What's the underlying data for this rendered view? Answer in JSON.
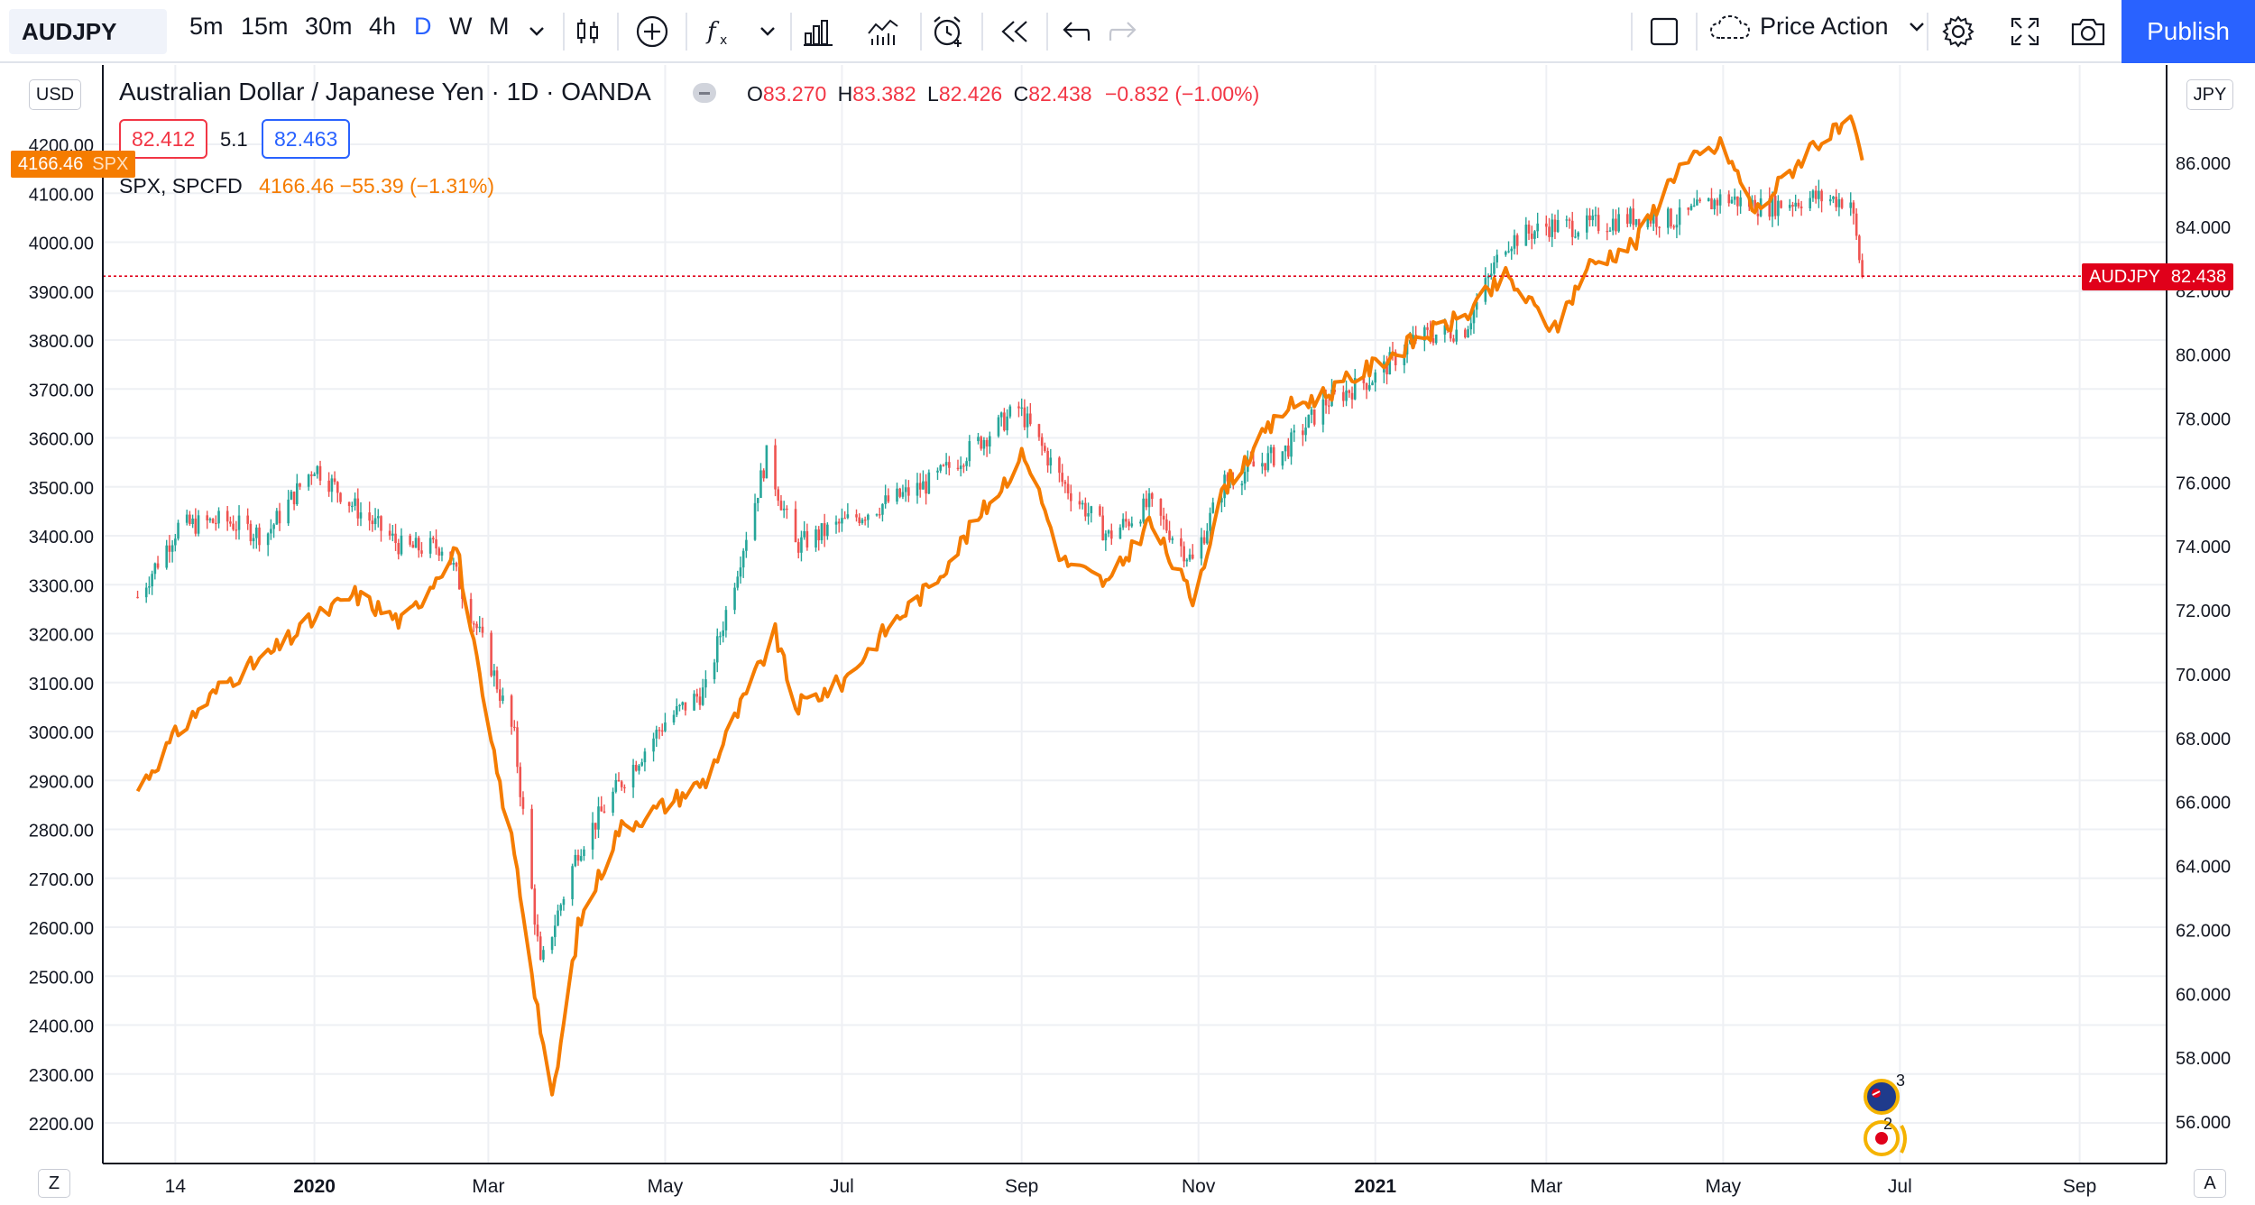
{
  "toolbar": {
    "symbol": "AUDJPY",
    "timeframes": [
      "5m",
      "15m",
      "30m",
      "4h",
      "D",
      "W",
      "M"
    ],
    "active_timeframe": "D",
    "template_label": "Price Action",
    "publish_label": "Publish"
  },
  "legend": {
    "title": "Australian Dollar / Japanese Yen · 1D · OANDA",
    "o_label": "O",
    "o_value": "83.270",
    "h_label": "H",
    "h_value": "83.382",
    "l_label": "L",
    "l_value": "82.426",
    "c_label": "C",
    "c_value": "82.438",
    "change": "−0.832 (−1.00%)",
    "bid": "82.412",
    "spread": "5.1",
    "ask": "82.463",
    "overlay_name": "SPX, SPCFD",
    "overlay_values": "4166.46  −55.39 (−1.31%)"
  },
  "axes": {
    "left_unit": "USD",
    "right_unit": "JPY",
    "left_ticks": [
      "2200.00",
      "2300.00",
      "2400.00",
      "2500.00",
      "2600.00",
      "2700.00",
      "2800.00",
      "2900.00",
      "3000.00",
      "3100.00",
      "3200.00",
      "3300.00",
      "3400.00",
      "3500.00",
      "3600.00",
      "3700.00",
      "3800.00",
      "3900.00",
      "4000.00",
      "4100.00",
      "4200.00"
    ],
    "right_ticks": [
      "56.000",
      "58.000",
      "60.000",
      "62.000",
      "64.000",
      "66.000",
      "68.000",
      "70.000",
      "72.000",
      "74.000",
      "76.000",
      "78.000",
      "80.000",
      "82.000",
      "84.000",
      "86.000"
    ],
    "x_ticks": [
      "14",
      "2020",
      "Mar",
      "May",
      "Jul",
      "Sep",
      "Nov",
      "2021",
      "Mar",
      "May",
      "Jul",
      "Sep"
    ],
    "bottom_left_btn": "Z",
    "bottom_right_btn": "A",
    "left_price_tag": "4166.46",
    "left_price_tag_sym": "SPX",
    "right_price_tag_sym": "AUDJPY",
    "right_price_tag": "82.438"
  },
  "colors": {
    "candle_up": "#26a69a",
    "candle_down": "#ef5350",
    "overlay_line": "#f57c00",
    "last_price": "#e0001a",
    "accent": "#2962ff"
  },
  "events": {
    "badge_top": "3",
    "badge_bottom": "2"
  },
  "chart_data": {
    "type": "line",
    "title": "Australian Dollar / Japanese Yen · 1D · OANDA",
    "ylim_left": [
      2150,
      4300
    ],
    "ylim_right": [
      55,
      87
    ],
    "grid": true,
    "series": [
      {
        "name": "AUDJPY",
        "axis": "right",
        "style": "candles",
        "x": [
          "2019-11-01",
          "2019-11-15",
          "2019-12-01",
          "2019-12-15",
          "2020-01-01",
          "2020-01-15",
          "2020-02-01",
          "2020-02-15",
          "2020-03-01",
          "2020-03-10",
          "2020-03-19",
          "2020-04-01",
          "2020-04-15",
          "2020-05-01",
          "2020-05-15",
          "2020-06-05",
          "2020-06-15",
          "2020-07-01",
          "2020-07-15",
          "2020-08-01",
          "2020-08-31",
          "2020-09-15",
          "2020-10-01",
          "2020-10-15",
          "2020-10-30",
          "2020-11-10",
          "2020-12-01",
          "2020-12-15",
          "2021-01-01",
          "2021-01-15",
          "2021-02-01",
          "2021-02-15",
          "2021-03-01",
          "2021-03-15",
          "2021-04-01",
          "2021-04-15",
          "2021-05-01",
          "2021-05-15",
          "2021-06-01",
          "2021-06-14",
          "2021-06-18"
        ],
        "values": [
          72.4,
          74.6,
          74.8,
          74.3,
          76.5,
          75.2,
          73.9,
          74.0,
          70.5,
          68.0,
          60.8,
          64.5,
          66.5,
          68.5,
          69.5,
          76.8,
          74.0,
          74.7,
          75.3,
          76.0,
          78.3,
          76.0,
          74.3,
          75.3,
          73.5,
          76.0,
          77.0,
          78.5,
          79.3,
          80.5,
          80.8,
          83.5,
          84.0,
          84.0,
          84.3,
          84.2,
          84.9,
          84.6,
          84.9,
          84.8,
          82.4
        ]
      },
      {
        "name": "SPX, SPCFD",
        "axis": "left",
        "style": "line",
        "x": [
          "2019-11-01",
          "2019-11-15",
          "2019-12-01",
          "2019-12-15",
          "2020-01-01",
          "2020-01-15",
          "2020-02-01",
          "2020-02-19",
          "2020-03-01",
          "2020-03-10",
          "2020-03-23",
          "2020-04-01",
          "2020-04-15",
          "2020-05-01",
          "2020-05-15",
          "2020-06-08",
          "2020-06-15",
          "2020-07-01",
          "2020-07-15",
          "2020-08-01",
          "2020-09-02",
          "2020-09-15",
          "2020-10-01",
          "2020-10-15",
          "2020-10-30",
          "2020-11-10",
          "2020-12-01",
          "2020-12-15",
          "2021-01-01",
          "2021-01-15",
          "2021-02-01",
          "2021-02-15",
          "2021-03-04",
          "2021-03-15",
          "2021-04-01",
          "2021-04-15",
          "2021-05-01",
          "2021-05-12",
          "2021-06-01",
          "2021-06-14",
          "2021-06-18"
        ],
        "values": [
          2880,
          3000,
          3100,
          3150,
          3230,
          3280,
          3220,
          3380,
          3000,
          2750,
          2240,
          2600,
          2800,
          2850,
          2900,
          3200,
          3050,
          3100,
          3200,
          3300,
          3570,
          3350,
          3300,
          3430,
          3270,
          3500,
          3660,
          3690,
          3750,
          3800,
          3850,
          3930,
          3820,
          3950,
          4000,
          4150,
          4200,
          4060,
          4200,
          4240,
          4166
        ]
      }
    ]
  }
}
